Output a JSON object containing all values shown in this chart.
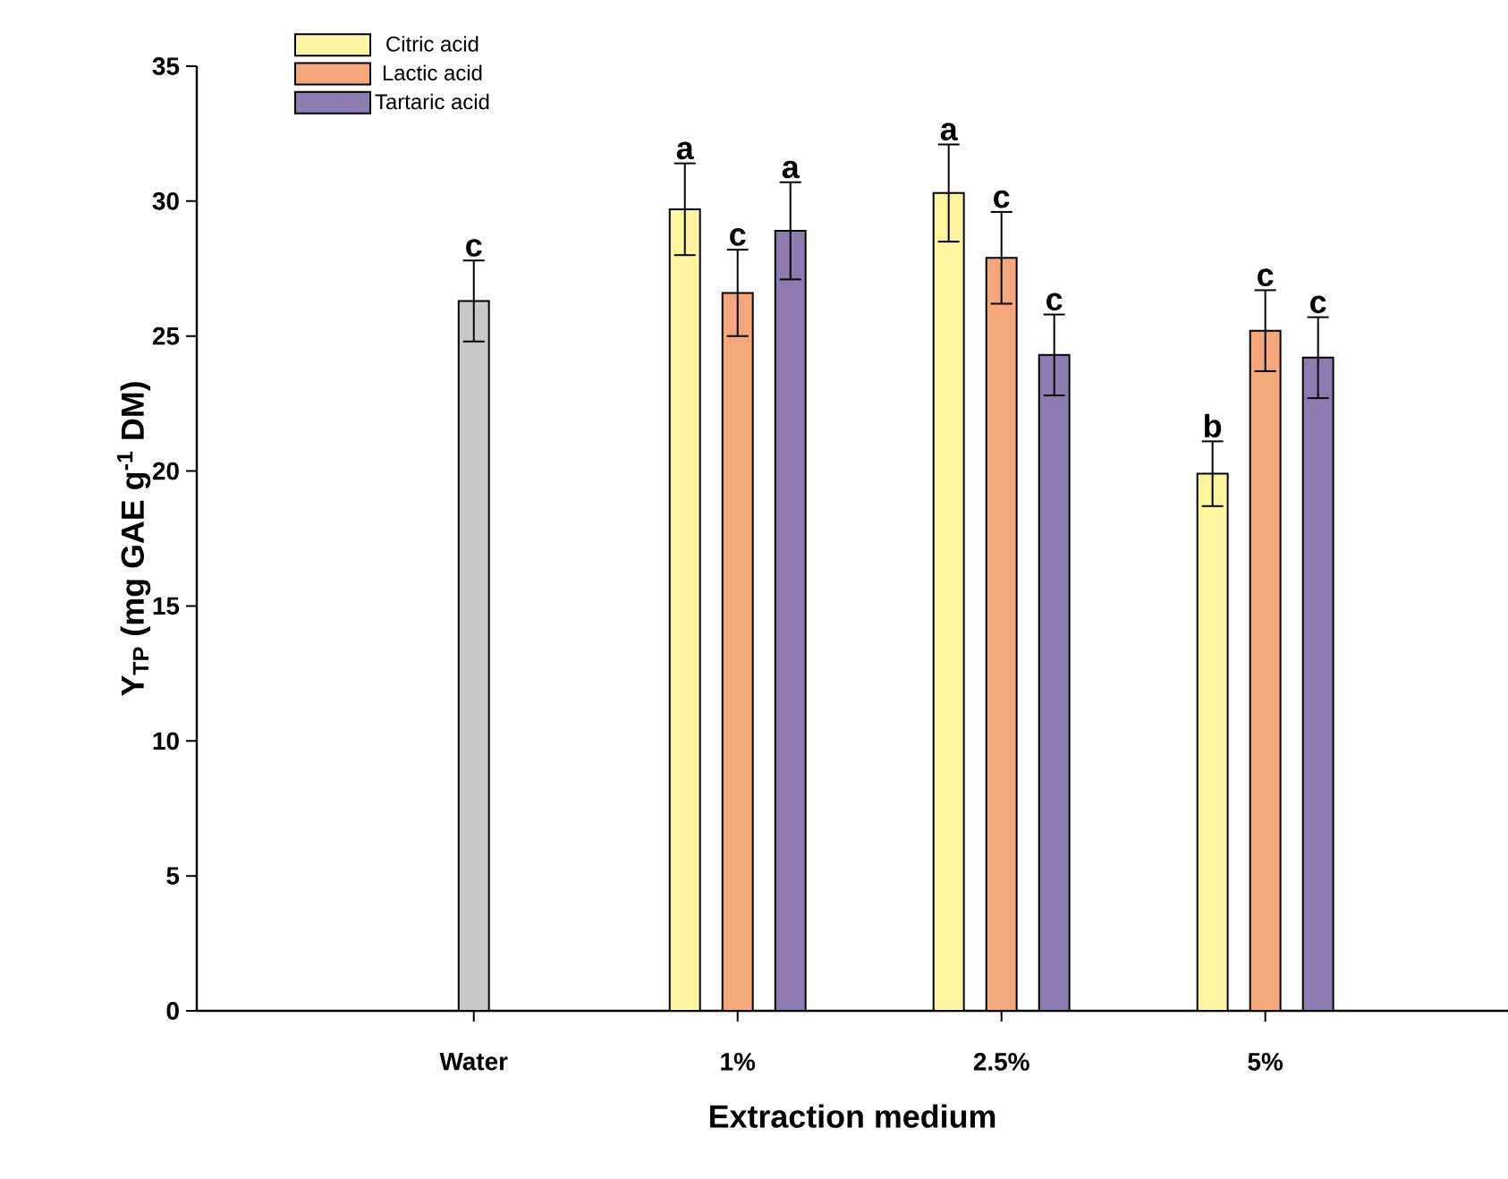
{
  "chart_data": {
    "type": "bar",
    "xlabel": "Extraction medium",
    "ylabel": "Y$_{TP}$ (mg GAE g$^{-1}$ DM)",
    "categories": [
      "Water",
      "1%",
      "2.5%",
      "5%"
    ],
    "ylim": [
      0,
      35
    ],
    "yticks": [
      0,
      5,
      10,
      15,
      20,
      25,
      30,
      35
    ],
    "legend": "top left",
    "series": [
      {
        "color": "#c8c8c8",
        "values": [
          26.3,
          null,
          null,
          null
        ],
        "errors": [
          1.5,
          null,
          null,
          null
        ],
        "value_labels": [
          "c",
          null,
          null,
          null
        ]
      },
      {
        "name": "Citric acid",
        "color": "#fff5a0",
        "values": [
          null,
          29.7,
          30.3,
          19.9
        ],
        "errors": [
          null,
          1.7,
          1.8,
          1.2
        ],
        "value_labels": [
          null,
          "a",
          "a",
          "b"
        ]
      },
      {
        "name": "Lactic acid",
        "color": "#f4a77a",
        "values": [
          null,
          26.6,
          27.9,
          25.2
        ],
        "errors": [
          null,
          1.6,
          1.7,
          1.5
        ],
        "value_labels": [
          null,
          "c",
          "c",
          "c"
        ]
      },
      {
        "name": "Tartaric acid",
        "color": "#8e7bb0",
        "values": [
          null,
          28.9,
          24.3,
          24.2
        ],
        "errors": [
          null,
          1.8,
          1.5,
          1.5
        ],
        "value_labels": [
          null,
          "a",
          "c",
          "c"
        ]
      }
    ]
  }
}
